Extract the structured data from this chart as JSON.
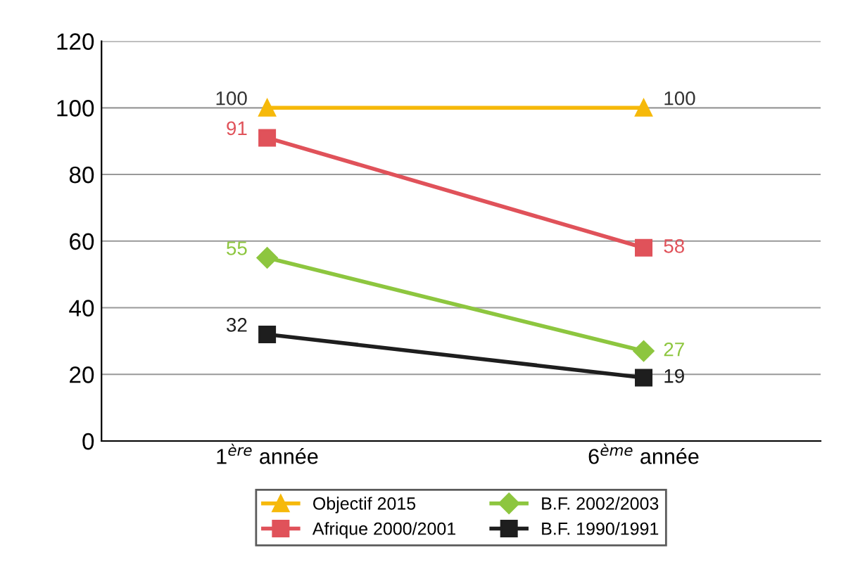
{
  "chart_data": {
    "type": "line",
    "categories": [
      "1$^{ère}$ année",
      "6$^{ème}$ année"
    ],
    "series": [
      {
        "name": "Objectif 2015",
        "color": "#f6b90a",
        "marker": "triangle",
        "values": [
          100,
          100
        ]
      },
      {
        "name": "Afrique 2000/2001",
        "color": "#e0525a",
        "marker": "square",
        "values": [
          91,
          58
        ]
      },
      {
        "name": "B.F. 2002/2003",
        "color": "#8dc63f",
        "marker": "diamond",
        "values": [
          55,
          27
        ]
      },
      {
        "name": "B.F. 1990/1991",
        "color": "#1e1e1e",
        "marker": "square",
        "values": [
          32,
          19
        ]
      }
    ],
    "ylim": [
      0,
      120
    ],
    "yticks": [
      0,
      20,
      40,
      60,
      80,
      100,
      120
    ],
    "grid": "y",
    "legend": "bottom",
    "data_labels": true,
    "line_style": "solid"
  }
}
